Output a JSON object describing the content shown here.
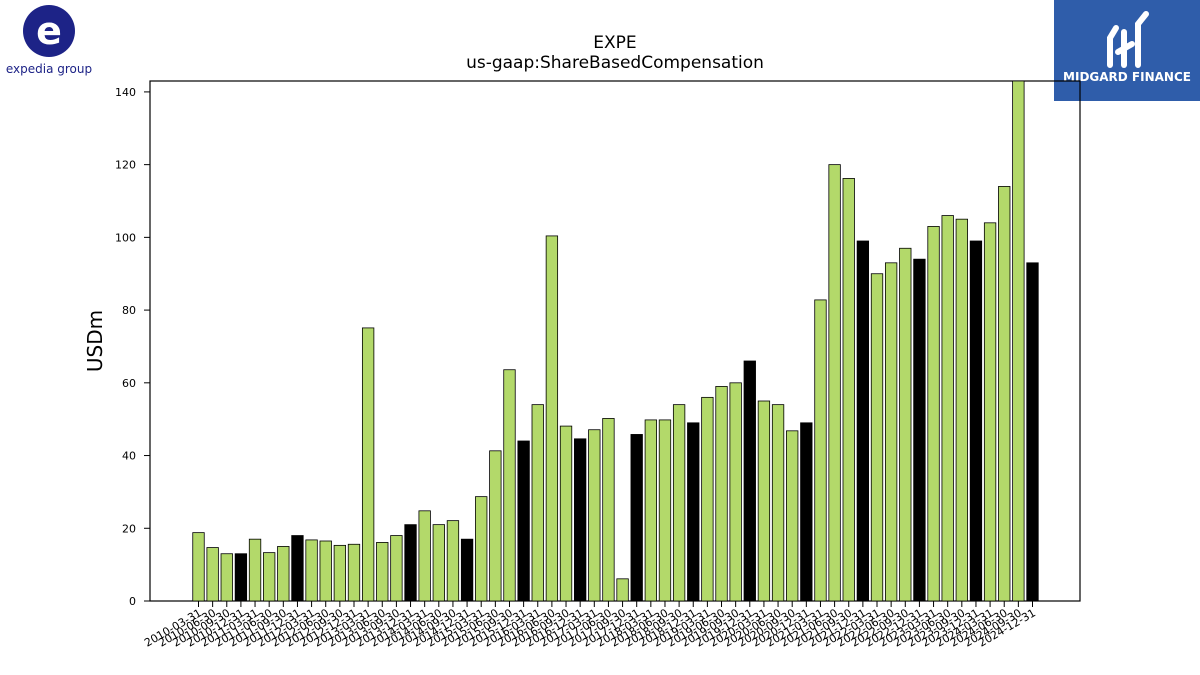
{
  "brand_left": {
    "name": "expedia group",
    "color": "#1D2387"
  },
  "brand_right": {
    "name": "MIDGARD FINANCE",
    "color": "#2F5DAA"
  },
  "colors": {
    "bar_regular": "#B3D96A",
    "bar_highlight": "#000000"
  },
  "chart_data": {
    "type": "bar",
    "title": "EXPE",
    "subtitle": "us-gaap:ShareBasedCompensation",
    "xlabel": "",
    "ylabel": "USDm",
    "ylim": [
      0,
      143
    ],
    "yticks": [
      0,
      20,
      40,
      60,
      80,
      100,
      120,
      140
    ],
    "grid": false,
    "categories": [
      "2010-03-31",
      "2010-06-30",
      "2010-09-30",
      "2010-12-31",
      "2011-03-31",
      "2011-06-30",
      "2011-09-30",
      "2011-12-31",
      "2012-03-31",
      "2012-06-30",
      "2012-09-30",
      "2012-12-31",
      "2013-03-31",
      "2013-06-30",
      "2013-09-30",
      "2013-12-31",
      "2014-03-31",
      "2014-06-30",
      "2014-09-30",
      "2014-12-31",
      "2015-03-31",
      "2015-06-30",
      "2015-09-30",
      "2015-12-31",
      "2016-03-31",
      "2016-06-30",
      "2016-09-30",
      "2016-12-31",
      "2017-03-31",
      "2017-06-30",
      "2017-09-30",
      "2017-12-31",
      "2018-03-31",
      "2018-06-30",
      "2018-09-30",
      "2018-12-31",
      "2019-03-31",
      "2019-06-30",
      "2019-09-30",
      "2019-12-31",
      "2020-03-31",
      "2020-06-30",
      "2020-09-30",
      "2020-12-31",
      "2021-03-31",
      "2021-06-30",
      "2021-09-30",
      "2021-12-31",
      "2022-03-31",
      "2022-06-30",
      "2022-09-30",
      "2022-12-31",
      "2023-03-31",
      "2023-06-30",
      "2023-09-30",
      "2023-12-31",
      "2024-03-31",
      "2024-06-30",
      "2024-09-30",
      "2024-12-31"
    ],
    "xtick_labels": [
      "2010-03-31",
      "2010-06-30",
      "2010-09-30",
      "2010-12-31",
      "2011-03-31",
      "2011-06-30",
      "2011-09-30",
      "2011-12-31",
      "2012-03-31",
      "2012-06-30",
      "2012-09-30",
      "2012-12-31",
      "2013-03-31",
      "2013-06-30",
      "2013-09-30",
      "2013-12-31",
      "2014-03-31",
      "2014-06-30",
      "2014-09-30",
      "2014-12-31",
      "2015-03-31",
      "2015-06-30",
      "2015-09-30",
      "2015-12-31",
      "2016-03-31",
      "2016-06-30",
      "2016-09-30",
      "2016-12-31",
      "2017-03-31",
      "2017-06-30",
      "2017-09-30",
      "2017-12-31",
      "2018-03-31",
      "2018-06-30",
      "2018-09-30",
      "2018-12-31",
      "2019-03-31",
      "2019-06-30",
      "2019-09-30",
      "2019-12-31",
      "2020-03-31",
      "2020-06-30",
      "2020-09-30",
      "2020-12-31",
      "2021-03-31",
      "2021-06-30",
      "2021-09-30",
      "2021-12-31",
      "2022-03-31",
      "2022-06-30",
      "2022-09-30",
      "2022-12-31",
      "2023-03-31",
      "2023-06-30",
      "2023-09-30",
      "2023-12-31",
      "2024-03-31",
      "2024-06-30",
      "2024-09-30",
      "2024-12-31"
    ],
    "values": [
      18.8,
      14.7,
      13.0,
      13.0,
      17.0,
      13.3,
      15.0,
      18.0,
      16.8,
      16.5,
      15.3,
      15.6,
      75.1,
      16.1,
      18.0,
      21.0,
      24.8,
      21.0,
      22.1,
      17.0,
      28.7,
      41.3,
      63.6,
      44.0,
      54.0,
      100.4,
      48.1,
      44.6,
      47.1,
      50.2,
      6.1,
      45.8,
      49.8,
      49.8,
      54.0,
      49.0,
      56.0,
      59.0,
      60.0,
      66.0,
      55.0,
      54.0,
      46.8,
      49.0,
      82.8,
      120.0,
      116.2,
      99.0,
      90.0,
      93.0,
      97.0,
      94.0,
      103.0,
      106.0,
      105.0,
      99.0,
      104.0,
      114.0,
      143.0,
      93.0
    ],
    "highlight_index": [
      3,
      7,
      15,
      19,
      23,
      27,
      31,
      35,
      39,
      43,
      47,
      51,
      55,
      59
    ]
  }
}
